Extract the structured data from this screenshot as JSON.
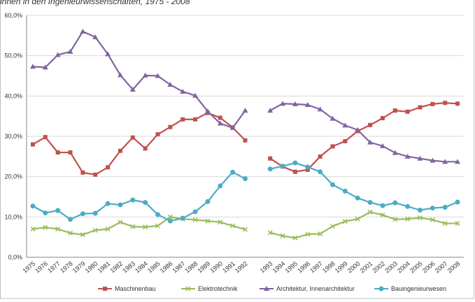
{
  "chart_data": {
    "type": "line",
    "title": "innen in den Ingenieurwissenschaften, 1975 - 2008",
    "categories": [
      "1975",
      "1976",
      "1977",
      "1978",
      "1979",
      "1980",
      "1981",
      "1982",
      "1983",
      "1984",
      "1985",
      "1986",
      "1987",
      "1988",
      "1989",
      "1990",
      "1991",
      "1992",
      null,
      "1993",
      "1994",
      "1995",
      "1996",
      "1997",
      "1998",
      "1999",
      "2000",
      "2001",
      "2002",
      "2003",
      "2004",
      "2005",
      "2006",
      "2007",
      "2008"
    ],
    "series": [
      {
        "name": "Maschinenbau",
        "color": "#c0504d",
        "marker": "square",
        "values": [
          28.0,
          29.8,
          26.0,
          26.0,
          21.0,
          20.5,
          22.3,
          26.4,
          29.7,
          27.0,
          30.5,
          32.3,
          34.2,
          34.2,
          35.8,
          34.6,
          32.2,
          29.0,
          null,
          24.5,
          22.5,
          21.2,
          21.7,
          25.0,
          27.5,
          28.8,
          31.3,
          32.8,
          34.5,
          36.4,
          36.1,
          37.2,
          38.0,
          38.3,
          38.1
        ]
      },
      {
        "name": "Elektrotechnik",
        "color": "#9bbb59",
        "marker": "x",
        "values": [
          7.0,
          7.4,
          7.0,
          6.0,
          5.6,
          6.7,
          7.0,
          8.7,
          7.6,
          7.5,
          7.8,
          10.0,
          9.5,
          9.3,
          9.0,
          8.7,
          7.8,
          6.9,
          null,
          6.1,
          5.3,
          4.8,
          5.7,
          5.8,
          7.7,
          8.9,
          9.5,
          11.2,
          10.5,
          9.4,
          9.5,
          9.8,
          9.3,
          8.4,
          8.4
        ]
      },
      {
        "name": "Architektur, Innenarchitektur",
        "color": "#8064a2",
        "marker": "triangle",
        "values": [
          47.3,
          47.1,
          50.2,
          51.0,
          56.0,
          54.6,
          50.4,
          45.2,
          41.6,
          45.1,
          45.0,
          42.8,
          41.1,
          40.1,
          36.2,
          33.2,
          32.1,
          36.4,
          null,
          36.4,
          38.1,
          38.0,
          37.8,
          36.7,
          34.4,
          32.7,
          31.6,
          28.5,
          27.6,
          25.9,
          25.0,
          24.5,
          24.0,
          23.7,
          23.7
        ]
      },
      {
        "name": "Bauingenieurwesen",
        "color": "#4bacc6",
        "marker": "circle",
        "values": [
          12.7,
          11.0,
          11.6,
          9.4,
          10.8,
          10.9,
          13.3,
          13.0,
          14.2,
          13.6,
          10.6,
          9.0,
          9.7,
          11.3,
          13.8,
          17.7,
          21.1,
          19.5,
          null,
          21.9,
          22.6,
          23.4,
          22.4,
          21.2,
          18.0,
          16.4,
          14.7,
          13.6,
          12.8,
          13.5,
          12.6,
          11.7,
          12.2,
          12.4,
          13.7
        ]
      }
    ],
    "ylim": [
      0,
      60
    ],
    "yticks": [
      {
        "value": 0,
        "label": "0,0%"
      },
      {
        "value": 10,
        "label": "10,0%"
      },
      {
        "value": 20,
        "label": "20,0%"
      },
      {
        "value": 30,
        "label": "30,0%"
      },
      {
        "value": 40,
        "label": "40,0%"
      },
      {
        "value": 50,
        "label": "50,0%"
      },
      {
        "value": 60,
        "label": "60,0%"
      }
    ],
    "grid": true,
    "legend": "bottom"
  }
}
